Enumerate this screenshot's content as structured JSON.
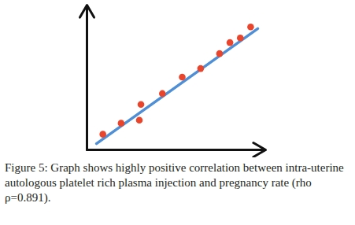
{
  "chart_data": {
    "type": "scatter",
    "caption": "Figure 5: Graph shows highly positive correlation between intra-uterine autologous platelet rich plasma injection and pregnancy rate (rho ρ=0.891).",
    "xlim": [
      0,
      100
    ],
    "ylim": [
      0,
      100
    ],
    "tick_labels": false,
    "grid": false,
    "series": [
      {
        "type": "scatter",
        "color": "#e8452c",
        "marker": "circle",
        "x": [
          8.9,
          19.1,
          29.3,
          30.2,
          42.2,
          53.3,
          63.6,
          74.2,
          80.0,
          85.8,
          91.6
        ],
        "values": [
          10.8,
          18.4,
          20.5,
          31.4,
          38.9,
          50.3,
          56.2,
          66.5,
          74.1,
          77.3,
          84.9
        ]
      },
      {
        "type": "line",
        "color": "#4f8fd6",
        "line_style": "solid",
        "x": [
          5.3,
          95.6
        ],
        "values": [
          4.3,
          83.8
        ]
      }
    ]
  }
}
